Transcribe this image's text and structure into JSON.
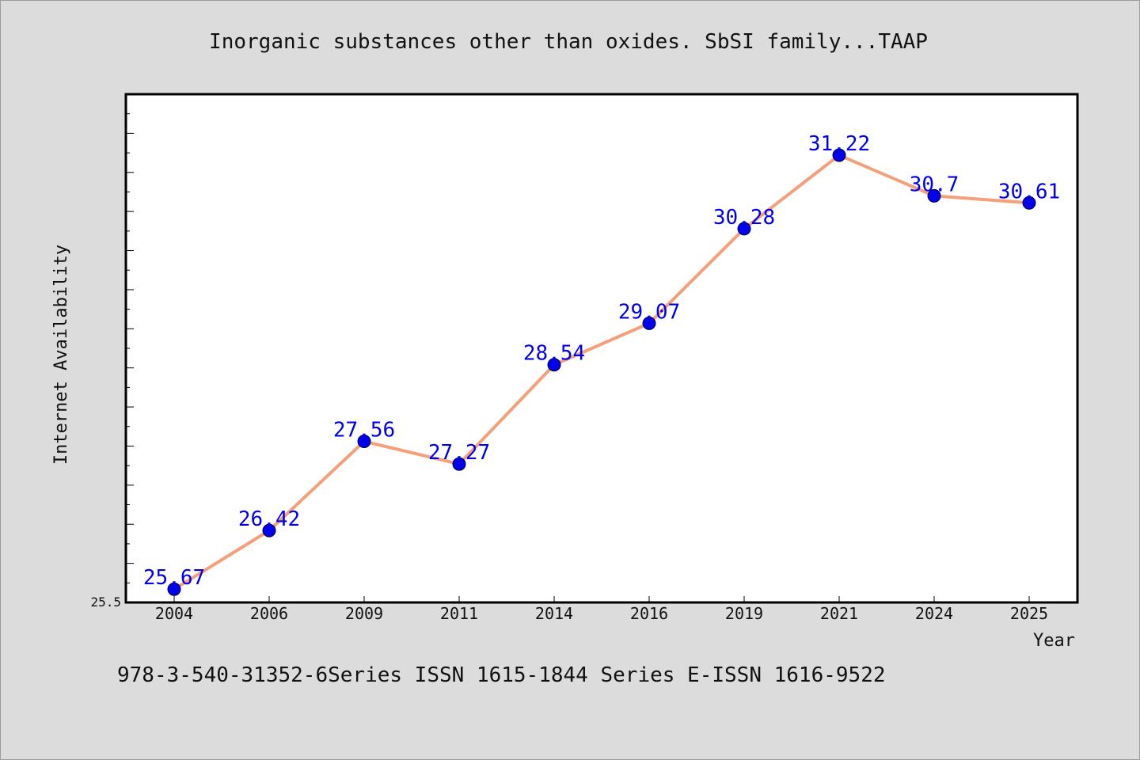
{
  "chart_data": {
    "type": "line",
    "title": "Inorganic substances other than oxides. SbSI family...TAAP",
    "xlabel": "Year",
    "ylabel": "Internet Availability",
    "categories": [
      "2004",
      "2006",
      "2009",
      "2011",
      "2014",
      "2016",
      "2019",
      "2021",
      "2024",
      "2025"
    ],
    "series": [
      {
        "values": [
          25.67,
          26.42,
          27.56,
          27.27,
          28.54,
          29.07,
          30.28,
          31.22,
          30.7,
          30.61
        ]
      }
    ],
    "data_labels": [
      "25.67",
      "26.42",
      "27.56",
      "27.27",
      "28.54",
      "29.07",
      "30.28",
      "31.22",
      "30.7",
      "30.61"
    ],
    "ylim": [
      25.5,
      32.0
    ],
    "y_tick_labels": [
      "25.5"
    ],
    "grid": false,
    "legend": "none",
    "colors": {
      "line": "#f4a07a",
      "marker": "#0000ee",
      "data_label": "#0000ee"
    }
  },
  "footer": "978-3-540-31352-6Series ISSN 1615-1844 Series E-ISSN 1616-9522"
}
